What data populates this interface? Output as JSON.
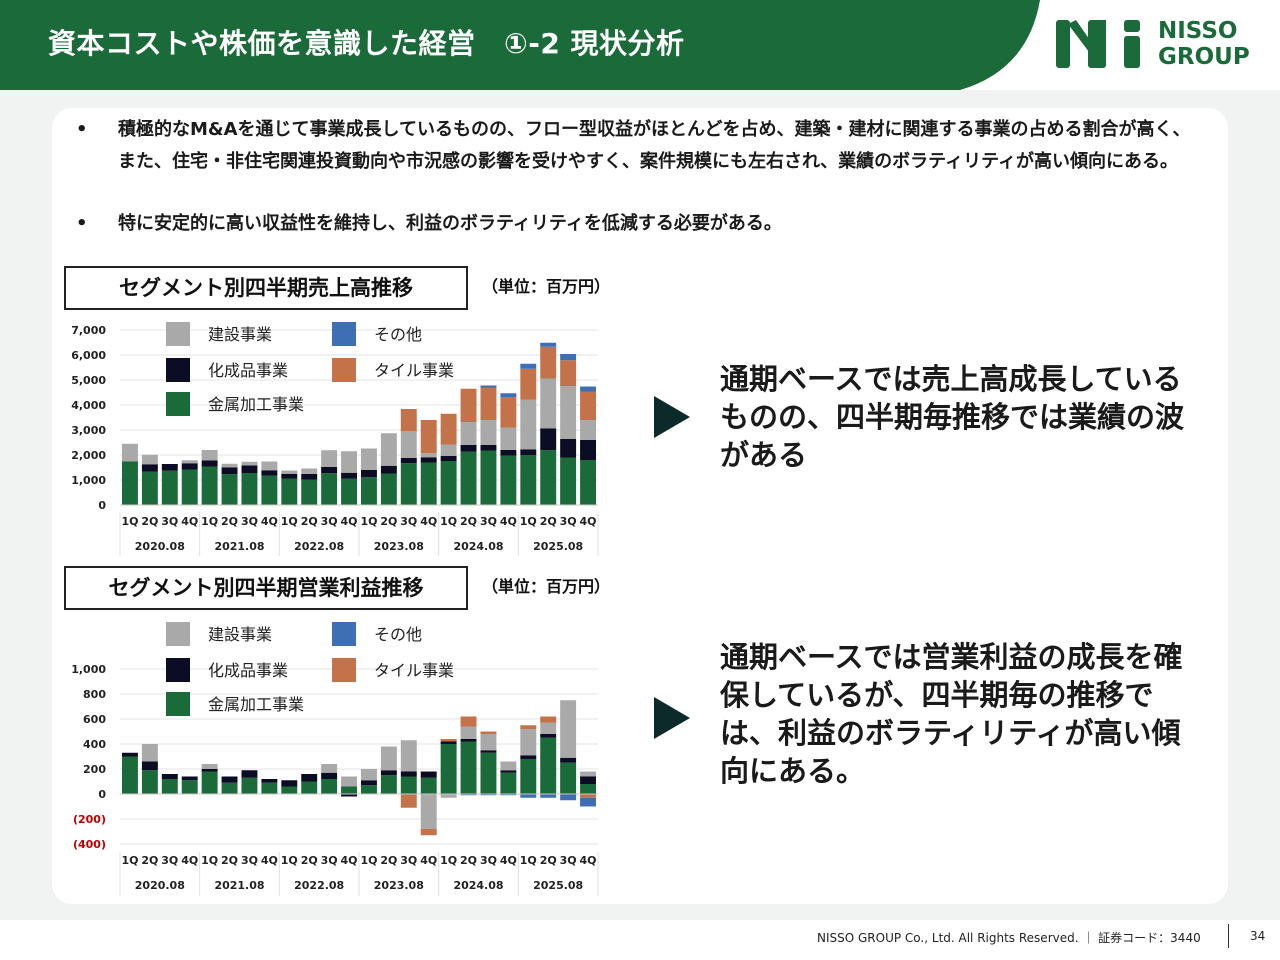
{
  "header": {
    "title": "資本コストや株価を意識した経営　①-2 現状分析",
    "logo_text_line1": "NISSO",
    "logo_text_line2": "GROUP",
    "brand_color": "#1b6b3a"
  },
  "bullets": [
    {
      "mark": "•",
      "text": "積極的なM&Aを通じて事業成長しているものの、フロー型収益がほとんどを占め、建築・建材に関連する事業の占める割合が高く、また、住宅・非住宅関連投資動向や市況感の影響を受けやすく、案件規模にも左右され、業績のボラティリティが高い傾向にある。"
    },
    {
      "mark": "•",
      "text": "特に安定的に高い収益性を維持し、利益のボラティリティを低減する必要がある。"
    }
  ],
  "sales_section": {
    "title": "セグメント別四半期売上高推移",
    "unit": "（単位：百万円）",
    "comment": "通期ベースでは売上高成長しているものの、四半期毎推移では業績の波がある"
  },
  "profit_section": {
    "title": "セグメント別四半期営業利益推移",
    "unit": "（単位：百万円）",
    "comment": "通期ベースでは営業利益の成長を確保しているが、四半期毎の推移では、利益のボラティリティが高い傾向にある。"
  },
  "chart_data": [
    {
      "type": "bar",
      "stacked": true,
      "title": "セグメント別四半期売上高推移",
      "ylim": [
        0,
        7000
      ],
      "yticks": [
        "0",
        "1,000",
        "2,000",
        "3,000",
        "4,000",
        "5,000",
        "6,000",
        "7,000"
      ],
      "ytick_values": [
        0,
        1000,
        2000,
        3000,
        4000,
        5000,
        6000,
        7000
      ],
      "categories": [
        "1Q",
        "2Q",
        "3Q",
        "4Q",
        "1Q",
        "2Q",
        "3Q",
        "4Q",
        "1Q",
        "2Q",
        "3Q",
        "4Q",
        "1Q",
        "2Q",
        "3Q",
        "4Q",
        "1Q",
        "2Q",
        "3Q",
        "4Q",
        "1Q",
        "2Q",
        "3Q",
        "4Q"
      ],
      "groups": [
        "2020.08",
        "2021.08",
        "2022.08",
        "2023.08",
        "2024.08",
        "2025.08"
      ],
      "legend": [
        "建設事業",
        "その他",
        "化成品事業",
        "タイル事業",
        "金属加工事業"
      ],
      "series": [
        {
          "name": "金属加工事業",
          "color": "#1b6b3a",
          "values": [
            1750,
            1330,
            1370,
            1420,
            1540,
            1230,
            1280,
            1170,
            1060,
            1010,
            1270,
            1050,
            1110,
            1260,
            1670,
            1700,
            1760,
            2130,
            2180,
            1970,
            2000,
            2190,
            1900,
            1800
          ]
        },
        {
          "name": "化成品事業",
          "color": "#0c0c24",
          "values": [
            0,
            300,
            270,
            250,
            240,
            270,
            300,
            220,
            190,
            230,
            250,
            240,
            290,
            310,
            210,
            210,
            200,
            270,
            220,
            230,
            220,
            870,
            740,
            800
          ]
        },
        {
          "name": "建設事業",
          "color": "#a9a9a9",
          "values": [
            700,
            380,
            0,
            120,
            420,
            150,
            150,
            350,
            130,
            220,
            670,
            860,
            860,
            1300,
            1080,
            160,
            460,
            920,
            1000,
            900,
            2000,
            2000,
            2120,
            800
          ]
        },
        {
          "name": "タイル事業",
          "color": "#c4724a",
          "values": [
            0,
            0,
            0,
            0,
            0,
            0,
            0,
            0,
            0,
            0,
            0,
            0,
            0,
            0,
            880,
            1330,
            1230,
            1330,
            1300,
            1220,
            1230,
            1270,
            1030,
            1140
          ]
        },
        {
          "name": "その他",
          "color": "#3e6fb5",
          "values": [
            0,
            0,
            0,
            0,
            0,
            0,
            0,
            0,
            0,
            0,
            0,
            0,
            0,
            0,
            0,
            0,
            0,
            0,
            80,
            150,
            200,
            160,
            250,
            200
          ]
        }
      ]
    },
    {
      "type": "bar",
      "stacked": true,
      "title": "セグメント別四半期営業利益推移",
      "ylim": [
        -400,
        1000
      ],
      "yticks": [
        "(400)",
        "(200)",
        "0",
        "200",
        "400",
        "600",
        "800",
        "1,000"
      ],
      "ytick_values": [
        -400,
        -200,
        0,
        200,
        400,
        600,
        800,
        1000
      ],
      "categories": [
        "1Q",
        "2Q",
        "3Q",
        "4Q",
        "1Q",
        "2Q",
        "3Q",
        "4Q",
        "1Q",
        "2Q",
        "3Q",
        "4Q",
        "1Q",
        "2Q",
        "3Q",
        "4Q",
        "1Q",
        "2Q",
        "3Q",
        "4Q",
        "1Q",
        "2Q",
        "3Q",
        "4Q"
      ],
      "groups": [
        "2020.08",
        "2021.08",
        "2022.08",
        "2023.08",
        "2024.08",
        "2025.08"
      ],
      "legend": [
        "建設事業",
        "その他",
        "化成品事業",
        "タイル事業",
        "金属加工事業"
      ],
      "series": [
        {
          "name": "金属加工事業",
          "color": "#1b6b3a",
          "values": [
            300,
            190,
            120,
            110,
            180,
            90,
            130,
            90,
            60,
            100,
            120,
            60,
            70,
            150,
            140,
            130,
            400,
            420,
            330,
            170,
            280,
            450,
            250,
            80
          ]
        },
        {
          "name": "化成品事業",
          "color": "#0c0c24",
          "values": [
            30,
            70,
            40,
            30,
            20,
            50,
            60,
            30,
            50,
            60,
            50,
            -20,
            40,
            40,
            40,
            50,
            20,
            20,
            20,
            20,
            30,
            30,
            40,
            60
          ]
        },
        {
          "name": "建設事業",
          "color": "#a9a9a9",
          "values": [
            0,
            140,
            0,
            0,
            40,
            0,
            0,
            0,
            0,
            0,
            70,
            80,
            90,
            190,
            250,
            -280,
            -30,
            100,
            130,
            70,
            210,
            90,
            460,
            40
          ]
        },
        {
          "name": "タイル事業",
          "color": "#c4724a",
          "values": [
            0,
            0,
            0,
            0,
            0,
            0,
            0,
            0,
            0,
            0,
            0,
            0,
            0,
            0,
            -110,
            -50,
            20,
            80,
            20,
            0,
            30,
            50,
            0,
            -30
          ]
        },
        {
          "name": "その他",
          "color": "#3e6fb5",
          "values": [
            0,
            0,
            0,
            0,
            0,
            0,
            0,
            0,
            0,
            0,
            0,
            0,
            0,
            0,
            0,
            0,
            0,
            -10,
            -10,
            -10,
            -30,
            -30,
            -50,
            -70
          ]
        }
      ]
    }
  ],
  "footer": {
    "copyright": "NISSO GROUP Co., Ltd. All Rights Reserved. ｜ 証券コード：3440",
    "page_number": "34"
  }
}
